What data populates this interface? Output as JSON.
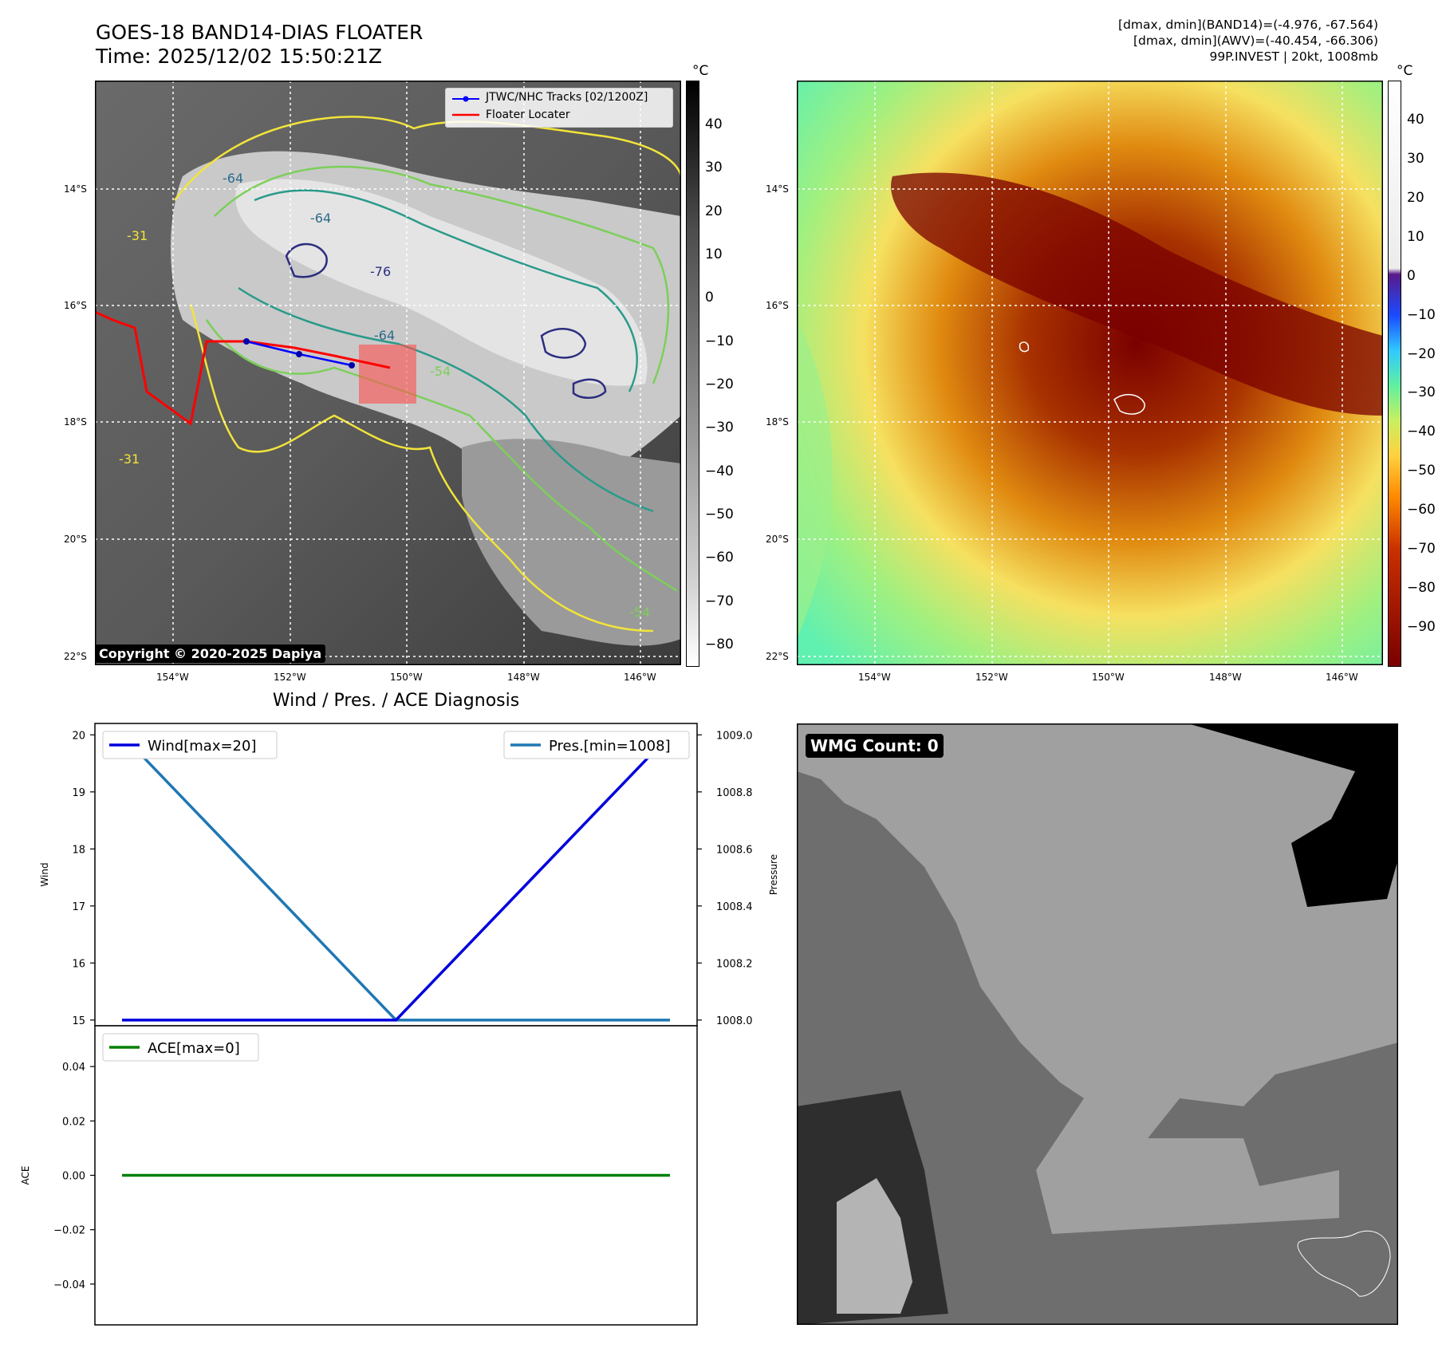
{
  "header": {
    "title_line1": "GOES-18 BAND14-DIAS FLOATER",
    "title_line2": "Time: 2025/12/02 15:50:21Z",
    "meta_line1": "[dmax, dmin](BAND14)=(-4.976, -67.564)",
    "meta_line2": "[dmax, dmin](AWV)=(-40.454, -66.306)",
    "meta_line3": "99P.INVEST | 20kt, 1008mb"
  },
  "map": {
    "lat_labels": [
      "14°S",
      "16°S",
      "18°S",
      "20°S",
      "22°S"
    ],
    "lon_labels": [
      "154°W",
      "152°W",
      "150°W",
      "148°W",
      "146°W"
    ],
    "legend_tracks": "JTWC/NHC Tracks [02/1200Z]",
    "legend_floater": "Floater Locater",
    "copyright": "Copyright © 2020-2025 Dapiya",
    "contour_labels": [
      "-64",
      "-64",
      "-76",
      "-64",
      "-54",
      "-54",
      "-31",
      "-31"
    ],
    "colorbar_unit": "°C",
    "colorbar_ticks": [
      "40",
      "30",
      "20",
      "10",
      "0",
      "−10",
      "−20",
      "−30",
      "−40",
      "−50",
      "−60",
      "−70",
      "−80"
    ],
    "track_color": "#0000ff",
    "floater_color": "#ff0000"
  },
  "awv": {
    "lat_labels": [
      "14°S",
      "16°S",
      "18°S",
      "20°S",
      "22°S"
    ],
    "lon_labels": [
      "154°W",
      "152°W",
      "150°W",
      "148°W",
      "146°W"
    ],
    "colorbar_unit": "°C",
    "colorbar_ticks": [
      "40",
      "30",
      "20",
      "10",
      "0",
      "−10",
      "−20",
      "−30",
      "−40",
      "−50",
      "−60",
      "−70",
      "−80",
      "−90"
    ]
  },
  "wmg": {
    "count_label": "WMG Count: 0"
  },
  "diag": {
    "title": "Wind / Pres. / ACE Diagnosis",
    "wind_ylabel": "Wind",
    "pres_ylabel": "Pressure",
    "ace_ylabel": "ACE",
    "wind_legend": "Wind[max=20]",
    "pres_legend": "Pres.[min=1008]",
    "ace_legend": "ACE[max=0]",
    "wind_ticks": [
      "20",
      "19",
      "18",
      "17",
      "16",
      "15"
    ],
    "pres_ticks": [
      "1009.0",
      "1008.8",
      "1008.6",
      "1008.4",
      "1008.2",
      "1008.0"
    ],
    "ace_ticks": [
      "0.04",
      "0.02",
      "0.00",
      "−0.02",
      "−0.04"
    ]
  },
  "chart_data": [
    {
      "type": "line",
      "title": "Wind / Pres. / ACE Diagnosis",
      "x": [
        0,
        1,
        2
      ],
      "series": [
        {
          "name": "Wind[max=20]",
          "axis": "left",
          "values": [
            15,
            15,
            20
          ],
          "color": "#0000dd"
        },
        {
          "name": "Pres.[min=1008]",
          "axis": "right",
          "values": [
            1009.0,
            1008.0,
            1008.0
          ],
          "color": "#1f77b4"
        }
      ],
      "ylabel": "Wind",
      "y2label": "Pressure",
      "ylim": [
        14.9,
        20.2
      ],
      "y2lim": [
        1007.98,
        1009.04
      ],
      "legend": [
        "top-left",
        "top-right"
      ]
    },
    {
      "type": "line",
      "x": [
        0,
        1,
        2
      ],
      "series": [
        {
          "name": "ACE[max=0]",
          "values": [
            0,
            0,
            0
          ],
          "color": "#008000"
        }
      ],
      "ylabel": "ACE",
      "ylim": [
        -0.055,
        0.055
      ],
      "legend": "top-left"
    }
  ]
}
